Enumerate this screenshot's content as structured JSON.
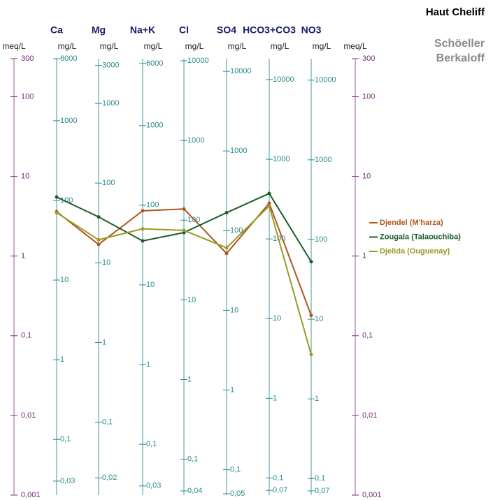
{
  "chart_data": {
    "type": "line",
    "title": "Haut Cheliff",
    "subtitle": [
      "Schöeller",
      "Berkaloff"
    ],
    "y_label": "meq/L",
    "y2_label": "meq/L",
    "y_log": true,
    "ylim": [
      0.001,
      300
    ],
    "yticks": [
      300,
      100,
      10,
      1,
      {
        "value": 0.1,
        "label": "0,1"
      },
      {
        "value": 0.01,
        "label": "0,01"
      },
      {
        "value": 0.001,
        "label": "0,001"
      }
    ],
    "categories": [
      "Ca",
      "Mg",
      "Na+K",
      "Cl",
      "SO4",
      "HCO3+CO3",
      "NO3"
    ],
    "columns": [
      {
        "unit": "mg/L",
        "mg_lim": [
          0.02,
          6012
        ],
        "mg_ticks": [
          6000,
          1000,
          100,
          10,
          1,
          {
            "value": 0.1,
            "label": "0,1"
          },
          {
            "value": 0.03,
            "label": "0,03"
          }
        ]
      },
      {
        "unit": "mg/L",
        "mg_lim": [
          0.01215,
          3645
        ],
        "mg_ticks": [
          3000,
          1000,
          100,
          10,
          1,
          {
            "value": 0.1,
            "label": "0,1"
          },
          {
            "value": 0.02,
            "label": "0,02"
          }
        ]
      },
      {
        "unit": "mg/L",
        "mg_lim": [
          0.023,
          6900
        ],
        "mg_ticks": [
          6000,
          1000,
          100,
          10,
          1,
          {
            "value": 0.1,
            "label": "0,1"
          },
          {
            "value": 0.03,
            "label": "0,03"
          }
        ]
      },
      {
        "unit": "mg/L",
        "mg_lim": [
          0.03545,
          10635
        ],
        "mg_ticks": [
          10000,
          1000,
          100,
          10,
          1,
          {
            "value": 0.1,
            "label": "0,1"
          },
          {
            "value": 0.04,
            "label": "0,04"
          }
        ]
      },
      {
        "unit": "mg/L",
        "mg_lim": [
          0.048,
          14409
        ],
        "mg_ticks": [
          10000,
          1000,
          100,
          10,
          1,
          {
            "value": 0.1,
            "label": "0,1"
          },
          {
            "value": 0.05,
            "label": "0,05"
          }
        ]
      },
      {
        "unit": "mg/L",
        "mg_lim": [
          0.061,
          18300
        ],
        "mg_ticks": [
          10000,
          1000,
          100,
          10,
          1,
          {
            "value": 0.1,
            "label": "0,1"
          },
          {
            "value": 0.07,
            "label": "0,07"
          }
        ]
      },
      {
        "unit": "mg/L",
        "mg_lim": [
          0.062,
          18600
        ],
        "mg_ticks": [
          10000,
          1000,
          100,
          10,
          1,
          {
            "value": 0.1,
            "label": "0,1"
          },
          {
            "value": 0.07,
            "label": "0,07"
          }
        ]
      }
    ],
    "series": [
      {
        "name": "Djendel (M'harza)",
        "color": "#b0561e",
        "values": [
          3.6,
          1.4,
          3.7,
          3.9,
          1.08,
          4.6,
          0.18
        ]
      },
      {
        "name": "Zougala (Talaouchiba)",
        "color": "#1d5c2c",
        "values": [
          5.5,
          3.1,
          1.55,
          1.97,
          3.5,
          6.1,
          0.85
        ]
      },
      {
        "name": "Djelida (Ouguenay)",
        "color": "#9a9a26",
        "values": [
          3.5,
          1.6,
          2.2,
          2.1,
          1.27,
          4.25,
          0.058
        ]
      }
    ]
  }
}
